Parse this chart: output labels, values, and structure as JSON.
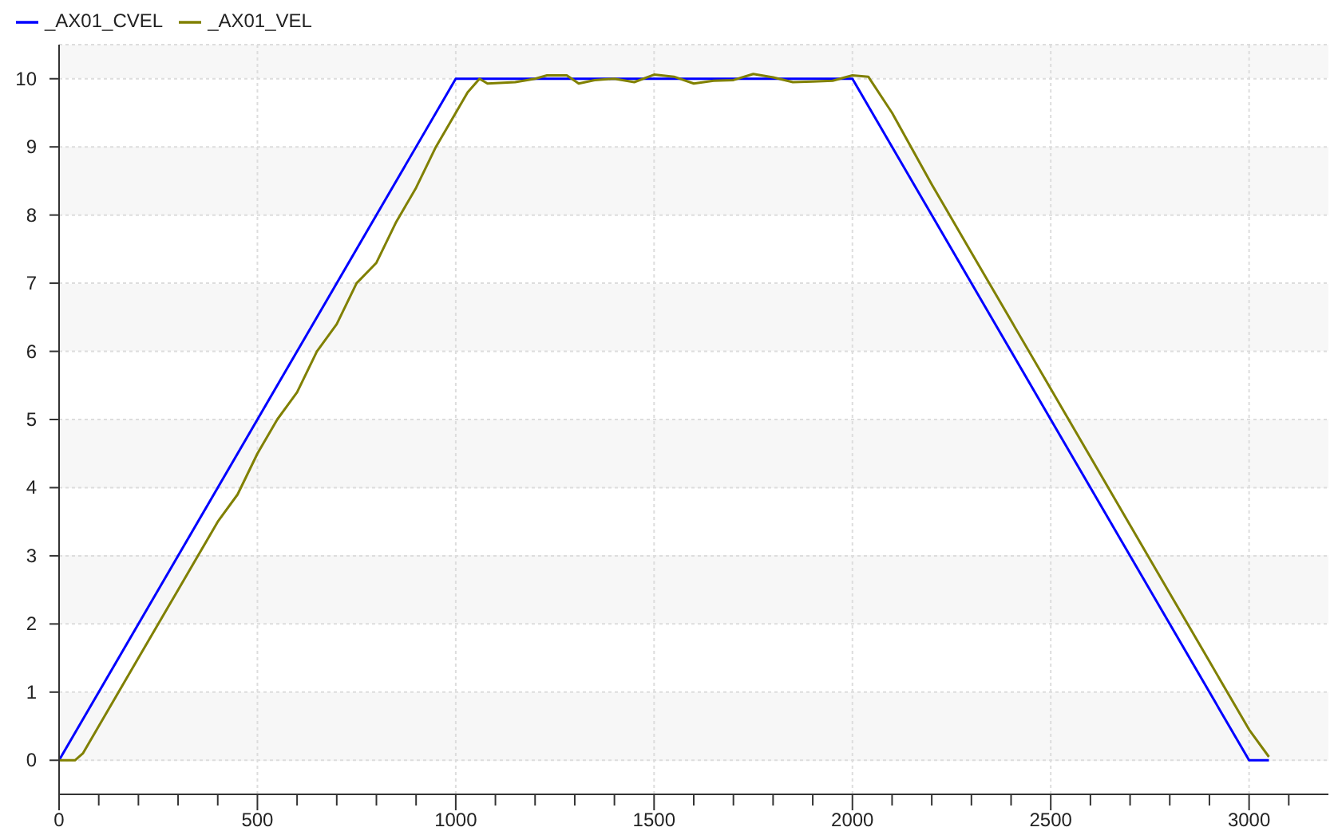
{
  "chart_data": {
    "type": "line",
    "legend": "top left",
    "grid": true,
    "marker": "none",
    "line_style": "solid",
    "xlim": [
      0,
      3200
    ],
    "ylim": [
      -0.5,
      10.5
    ],
    "xticks": [
      0,
      {
        "value": 100,
        "label": null
      },
      {
        "value": 200,
        "label": null
      },
      {
        "value": 300,
        "label": null
      },
      {
        "value": 400,
        "label": null
      },
      500,
      {
        "value": 600,
        "label": null
      },
      {
        "value": 700,
        "label": null
      },
      {
        "value": 800,
        "label": null
      },
      {
        "value": 900,
        "label": null
      },
      1000,
      {
        "value": 1100,
        "label": null
      },
      {
        "value": 1200,
        "label": null
      },
      {
        "value": 1300,
        "label": null
      },
      {
        "value": 1400,
        "label": null
      },
      1500,
      {
        "value": 1600,
        "label": null
      },
      {
        "value": 1700,
        "label": null
      },
      {
        "value": 1800,
        "label": null
      },
      {
        "value": 1900,
        "label": null
      },
      2000,
      {
        "value": 2100,
        "label": null
      },
      {
        "value": 2200,
        "label": null
      },
      {
        "value": 2300,
        "label": null
      },
      {
        "value": 2400,
        "label": null
      },
      2500,
      {
        "value": 2600,
        "label": null
      },
      {
        "value": 2700,
        "label": null
      },
      {
        "value": 2800,
        "label": null
      },
      {
        "value": 2900,
        "label": null
      },
      3000,
      {
        "value": 3100,
        "label": null
      }
    ],
    "yticks": [
      0,
      1,
      2,
      3,
      4,
      5,
      6,
      7,
      8,
      9,
      10
    ],
    "series": [
      {
        "name": "_AX01_CVEL",
        "color": "#0000ff",
        "x": [
          0,
          1000,
          2000,
          3000,
          3050
        ],
        "values": [
          0,
          10,
          10,
          0,
          0
        ]
      },
      {
        "name": "_AX01_VEL",
        "color": "#808000",
        "x": [
          0,
          40,
          60,
          100,
          200,
          300,
          400,
          450,
          500,
          550,
          600,
          650,
          700,
          750,
          800,
          850,
          900,
          950,
          1000,
          1030,
          1060,
          1080,
          1150,
          1200,
          1230,
          1280,
          1310,
          1350,
          1400,
          1450,
          1500,
          1550,
          1600,
          1650,
          1700,
          1750,
          1800,
          1850,
          1900,
          1950,
          2000,
          2040,
          2100,
          2200,
          2300,
          2400,
          2500,
          2600,
          2700,
          2800,
          2900,
          3000,
          3050
        ],
        "values": [
          0,
          0,
          0.1,
          0.5,
          1.5,
          2.5,
          3.5,
          3.9,
          4.5,
          5.0,
          5.4,
          6.0,
          6.4,
          7.0,
          7.3,
          7.9,
          8.4,
          9.0,
          9.5,
          9.8,
          10.0,
          9.93,
          9.95,
          10.0,
          10.05,
          10.05,
          9.93,
          9.98,
          10.0,
          9.95,
          10.06,
          10.03,
          9.93,
          9.97,
          9.98,
          10.07,
          10.02,
          9.95,
          9.96,
          9.97,
          10.05,
          10.03,
          9.5,
          8.45,
          7.45,
          6.45,
          5.45,
          4.45,
          3.45,
          2.45,
          1.45,
          0.45,
          0.05
        ]
      }
    ]
  }
}
